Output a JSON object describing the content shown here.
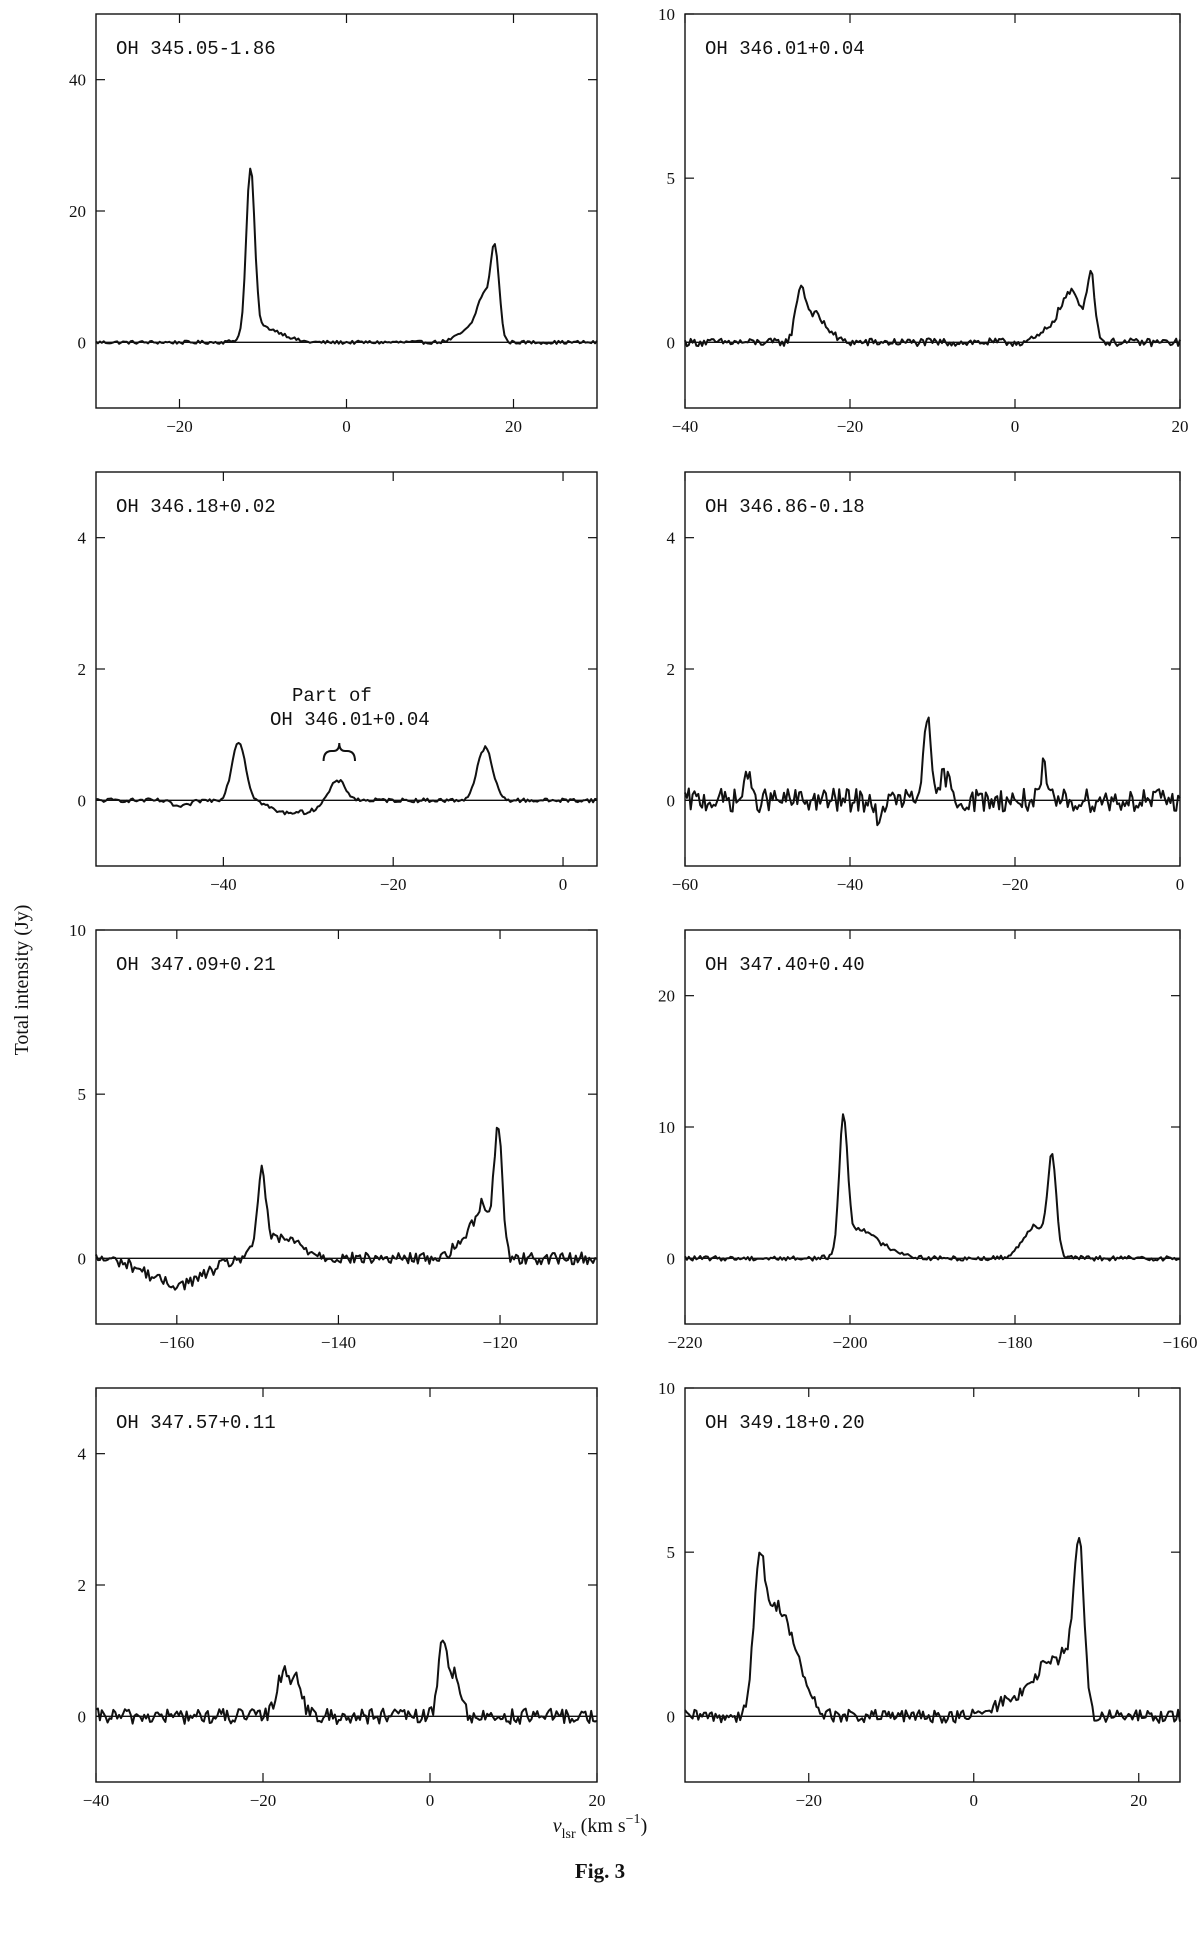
{
  "figure": {
    "ylabel": "Total intensity (Jy)",
    "xlabel_main": "v",
    "xlabel_sub": "lsr",
    "xlabel_units": " (km s",
    "xlabel_exp": "−1",
    "xlabel_close": ")",
    "caption": "Fig. 3"
  },
  "chart_data": [
    {
      "type": "line",
      "title": "OH 345.05-1.86",
      "xlim": [
        -30,
        30
      ],
      "ylim": [
        -10,
        50
      ],
      "xticks": [
        -20,
        0,
        20
      ],
      "yticks": [
        0,
        20,
        40
      ],
      "series": [
        {
          "peaks": [
            [
              -11.5,
              25,
              0.5
            ],
            [
              -10.5,
              2,
              1.5
            ],
            [
              -8,
              1,
              1.5
            ],
            [
              15,
              2,
              1.5
            ],
            [
              16.5,
              6,
              0.8
            ],
            [
              17.8,
              13,
              0.5
            ]
          ],
          "noise": 0.25,
          "baseline_offset": 0
        }
      ]
    },
    {
      "type": "line",
      "title": "OH 346.01+0.04",
      "xlim": [
        -40,
        20
      ],
      "ylim": [
        -2,
        10
      ],
      "xticks": [
        -40,
        -20,
        0,
        20
      ],
      "yticks": [
        0,
        5,
        10
      ],
      "series": [
        {
          "peaks": [
            [
              -26,
              1.6,
              0.6
            ],
            [
              -24.5,
              0.7,
              0.8
            ],
            [
              -23,
              0.4,
              1.0
            ],
            [
              5,
              0.5,
              1.5
            ],
            [
              7,
              1.3,
              1.2
            ],
            [
              9.2,
              1.9,
              0.5
            ]
          ],
          "noise": 0.12,
          "baseline_offset": 0
        }
      ]
    },
    {
      "type": "line",
      "title": "OH 346.18+0.02",
      "xlim": [
        -55,
        4
      ],
      "ylim": [
        -1,
        5
      ],
      "xticks": [
        -40,
        -20,
        0
      ],
      "yticks": [
        0,
        2,
        4
      ],
      "series": [
        {
          "peaks": [
            [
              -38.2,
              0.9,
              0.8
            ],
            [
              -26.5,
              0.3,
              0.9
            ],
            [
              -9.2,
              0.8,
              0.9
            ],
            [
              -33,
              -0.18,
              1.5
            ],
            [
              -30,
              -0.15,
              1.2
            ],
            [
              -45,
              -0.1,
              1.0
            ]
          ],
          "noise": 0.03,
          "baseline_offset": 0
        }
      ]
    },
    {
      "type": "line",
      "title": "OH 346.86-0.18",
      "xlim": [
        -60,
        0
      ],
      "ylim": [
        -1,
        5
      ],
      "xticks": [
        -60,
        -40,
        -20,
        0
      ],
      "yticks": [
        0,
        2,
        4
      ],
      "series": [
        {
          "peaks": [
            [
              -30.7,
              1.35,
              0.4
            ],
            [
              -28.5,
              0.4,
              0.5
            ],
            [
              -16.5,
              0.5,
              0.3
            ],
            [
              -52.5,
              0.5,
              0.3
            ],
            [
              -36.5,
              -0.5,
              0.3
            ]
          ],
          "noise": 0.18,
          "baseline_offset": 0
        }
      ]
    },
    {
      "type": "line",
      "title": "OH 347.09+0.21",
      "xlim": [
        -170,
        -108
      ],
      "ylim": [
        -2,
        10
      ],
      "xticks": [
        -160,
        -140,
        -120
      ],
      "yticks": [
        0,
        5,
        10
      ],
      "series": [
        {
          "peaks": [
            [
              -149.5,
              2.4,
              0.5
            ],
            [
              -147,
              0.6,
              2.5
            ],
            [
              -124,
              0.6,
              1.5
            ],
            [
              -122,
              1.4,
              1.0
            ],
            [
              -120.2,
              3.8,
              0.5
            ],
            [
              -160,
              -0.8,
              3.5
            ]
          ],
          "noise": 0.18,
          "baseline_offset": 0
        }
      ]
    },
    {
      "type": "line",
      "title": "OH 347.40+0.40",
      "xlim": [
        -220,
        -160
      ],
      "ylim": [
        -5,
        25
      ],
      "xticks": [
        -220,
        -200,
        -180,
        -160
      ],
      "yticks": [
        0,
        10,
        20
      ],
      "series": [
        {
          "peaks": [
            [
              -200.8,
              10,
              0.5
            ],
            [
              -199,
              2,
              1.5
            ],
            [
              -196,
              0.8,
              2.0
            ],
            [
              -177.5,
              2.5,
              1.5
            ],
            [
              -175.5,
              7,
              0.5
            ]
          ],
          "noise": 0.18,
          "baseline_offset": 0
        }
      ]
    },
    {
      "type": "line",
      "title": "OH 347.57+0.11",
      "xlim": [
        -40,
        20
      ],
      "ylim": [
        -1,
        5
      ],
      "xticks": [
        -40,
        -20,
        0,
        20
      ],
      "yticks": [
        0,
        2,
        4
      ],
      "series": [
        {
          "peaks": [
            [
              -17.5,
              0.7,
              0.8
            ],
            [
              -15.8,
              0.5,
              0.6
            ],
            [
              1.5,
              1.2,
              0.5
            ],
            [
              3,
              0.7,
              0.6
            ]
          ],
          "noise": 0.12,
          "baseline_offset": 0
        }
      ]
    },
    {
      "type": "line",
      "title": "OH 349.18+0.20",
      "xlim": [
        -35,
        25
      ],
      "ylim": [
        -2,
        10
      ],
      "xticks": [
        -20,
        0,
        20
      ],
      "yticks": [
        0,
        5,
        10
      ],
      "series": [
        {
          "peaks": [
            [
              -26,
              3.6,
              0.7
            ],
            [
              -24,
              3.0,
              1.5
            ],
            [
              -21.5,
              1.2,
              1.5
            ],
            [
              5,
              0.6,
              2.0
            ],
            [
              9,
              1.5,
              1.5
            ],
            [
              12.8,
              4.8,
              0.6
            ],
            [
              11.5,
              1.5,
              1.0
            ]
          ],
          "noise": 0.2,
          "baseline_offset": 0
        }
      ]
    }
  ],
  "annotation": {
    "line1": "Part of",
    "line2": "OH 346.01+0.04"
  }
}
